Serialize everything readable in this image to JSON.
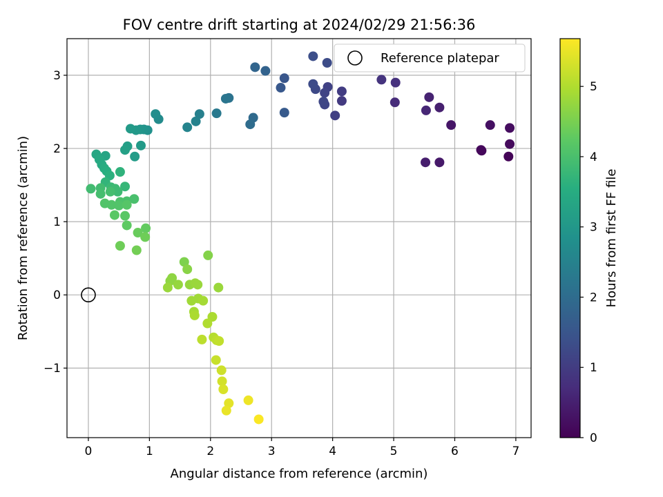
{
  "chart_data": {
    "type": "scatter",
    "title": "FOV centre drift starting at 2024/02/29 21:56:36",
    "xlabel": "Angular distance from reference (arcmin)",
    "ylabel": "Rotation from reference (arcmin)",
    "xlim": [
      -0.35,
      7.25
    ],
    "ylim": [
      -1.95,
      3.5
    ],
    "xticks": [
      0,
      1,
      2,
      3,
      4,
      5,
      6,
      7
    ],
    "yticks": [
      -1,
      0,
      1,
      2,
      3
    ],
    "xtick_labels": [
      "0",
      "1",
      "2",
      "3",
      "4",
      "5",
      "6",
      "7"
    ],
    "ytick_labels": [
      "−1",
      "0",
      "1",
      "2",
      "3"
    ],
    "grid": true,
    "legend": {
      "position": "top-right",
      "entries": [
        "Reference platepar"
      ]
    },
    "reference_point": {
      "name": "Reference platepar",
      "x": 0,
      "y": 0
    },
    "colorbar": {
      "label": "Hours from first FF file",
      "colormap": "viridis",
      "range": [
        0,
        5.68
      ],
      "ticks": [
        0,
        1,
        2,
        3,
        4,
        5
      ],
      "tick_labels": [
        "0",
        "1",
        "2",
        "3",
        "4",
        "5"
      ]
    },
    "points": [
      [
        6.88,
        1.89,
        0.05
      ],
      [
        6.43,
        1.98,
        0.1
      ],
      [
        6.44,
        1.97,
        0.12
      ],
      [
        6.9,
        2.06,
        0.15
      ],
      [
        6.9,
        2.28,
        0.2
      ],
      [
        6.58,
        2.32,
        0.25
      ],
      [
        5.94,
        2.32,
        0.32
      ],
      [
        5.75,
        1.81,
        0.38
      ],
      [
        5.52,
        1.81,
        0.45
      ],
      [
        5.75,
        2.56,
        0.5
      ],
      [
        5.58,
        2.7,
        0.55
      ],
      [
        5.53,
        2.52,
        0.62
      ],
      [
        5.02,
        2.63,
        0.7
      ],
      [
        5.03,
        2.9,
        0.78
      ],
      [
        4.8,
        2.94,
        0.85
      ],
      [
        4.15,
        2.65,
        0.95
      ],
      [
        4.15,
        2.78,
        1.0
      ],
      [
        4.04,
        2.45,
        1.05
      ],
      [
        3.92,
        2.84,
        1.1
      ],
      [
        3.87,
        2.76,
        1.15
      ],
      [
        3.87,
        2.6,
        1.18
      ],
      [
        3.85,
        2.64,
        1.2
      ],
      [
        3.72,
        2.81,
        1.25
      ],
      [
        3.68,
        2.88,
        1.28
      ],
      [
        3.91,
        3.17,
        1.3
      ],
      [
        3.68,
        3.26,
        1.35
      ],
      [
        3.21,
        2.96,
        1.5
      ],
      [
        3.15,
        2.83,
        1.55
      ],
      [
        3.21,
        2.49,
        1.6
      ],
      [
        2.9,
        3.06,
        1.8
      ],
      [
        2.73,
        3.11,
        1.85
      ],
      [
        2.7,
        2.42,
        1.95
      ],
      [
        2.65,
        2.33,
        2.0
      ],
      [
        2.3,
        2.69,
        2.15
      ],
      [
        2.25,
        2.68,
        2.2
      ],
      [
        2.1,
        2.48,
        2.3
      ],
      [
        1.82,
        2.47,
        2.45
      ],
      [
        1.76,
        2.37,
        2.5
      ],
      [
        1.62,
        2.29,
        2.55
      ],
      [
        1.15,
        2.4,
        2.7
      ],
      [
        1.1,
        2.47,
        2.75
      ],
      [
        0.97,
        2.25,
        2.85
      ],
      [
        0.91,
        2.26,
        2.9
      ],
      [
        0.85,
        2.26,
        2.95
      ],
      [
        0.78,
        2.25,
        3.0
      ],
      [
        0.69,
        2.27,
        3.05
      ],
      [
        0.86,
        2.04,
        3.05
      ],
      [
        0.76,
        1.89,
        3.1
      ],
      [
        0.64,
        2.03,
        3.15
      ],
      [
        0.6,
        1.98,
        3.2
      ],
      [
        0.28,
        1.9,
        3.3
      ],
      [
        0.13,
        1.92,
        3.35
      ],
      [
        0.18,
        1.85,
        3.4
      ],
      [
        0.22,
        1.78,
        3.45
      ],
      [
        0.26,
        1.73,
        3.5
      ],
      [
        0.3,
        1.69,
        3.55
      ],
      [
        0.35,
        1.63,
        3.6
      ],
      [
        0.52,
        1.68,
        3.65
      ],
      [
        0.28,
        1.54,
        3.7
      ],
      [
        0.6,
        1.48,
        3.75
      ],
      [
        0.37,
        1.47,
        3.8
      ],
      [
        0.44,
        1.45,
        3.85
      ],
      [
        0.48,
        1.41,
        3.85
      ],
      [
        0.04,
        1.45,
        3.9
      ],
      [
        0.2,
        1.46,
        3.9
      ],
      [
        0.2,
        1.38,
        3.95
      ],
      [
        0.36,
        1.41,
        3.95
      ],
      [
        0.75,
        1.31,
        4.0
      ],
      [
        0.63,
        1.28,
        4.0
      ],
      [
        0.52,
        1.27,
        4.05
      ],
      [
        0.27,
        1.25,
        4.1
      ],
      [
        0.38,
        1.23,
        4.1
      ],
      [
        0.5,
        1.22,
        4.1
      ],
      [
        0.63,
        1.23,
        4.15
      ],
      [
        0.43,
        1.09,
        4.2
      ],
      [
        0.6,
        1.08,
        4.2
      ],
      [
        0.63,
        0.95,
        4.25
      ],
      [
        0.94,
        0.91,
        4.3
      ],
      [
        0.81,
        0.85,
        4.35
      ],
      [
        0.93,
        0.79,
        4.4
      ],
      [
        0.52,
        0.67,
        4.4
      ],
      [
        0.79,
        0.61,
        4.45
      ],
      [
        1.57,
        0.45,
        4.55
      ],
      [
        1.96,
        0.54,
        4.6
      ],
      [
        1.62,
        0.35,
        4.65
      ],
      [
        1.37,
        0.23,
        4.7
      ],
      [
        1.34,
        0.19,
        4.7
      ],
      [
        1.47,
        0.14,
        4.75
      ],
      [
        1.66,
        0.14,
        4.75
      ],
      [
        1.75,
        0.16,
        4.8
      ],
      [
        1.79,
        0.14,
        4.8
      ],
      [
        1.3,
        0.1,
        4.8
      ],
      [
        2.13,
        0.1,
        4.8
      ],
      [
        1.69,
        -0.08,
        4.85
      ],
      [
        1.8,
        -0.05,
        4.85
      ],
      [
        1.88,
        -0.08,
        4.9
      ],
      [
        1.73,
        -0.23,
        4.9
      ],
      [
        1.74,
        -0.28,
        4.95
      ],
      [
        2.03,
        -0.3,
        4.95
      ],
      [
        1.95,
        -0.39,
        5.0
      ],
      [
        2.05,
        -0.58,
        5.05
      ],
      [
        2.1,
        -0.62,
        5.1
      ],
      [
        2.14,
        -0.63,
        5.15
      ],
      [
        1.86,
        -0.61,
        5.1
      ],
      [
        2.09,
        -0.89,
        5.2
      ],
      [
        2.18,
        -1.03,
        5.25
      ],
      [
        2.19,
        -1.18,
        5.3
      ],
      [
        2.21,
        -1.29,
        5.35
      ],
      [
        2.3,
        -1.48,
        5.45
      ],
      [
        2.26,
        -1.58,
        5.5
      ],
      [
        2.62,
        -1.44,
        5.55
      ],
      [
        2.79,
        -1.7,
        5.65
      ]
    ]
  }
}
